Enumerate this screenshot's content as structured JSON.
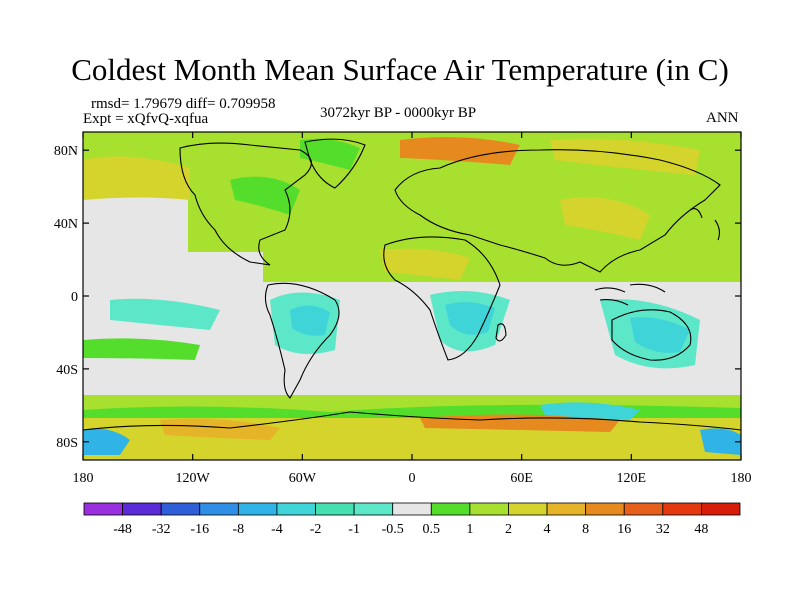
{
  "title": "Coldest Month Mean Surface Air Temperature (in C)",
  "stats": "rmsd= 1.79679  diff= 0.709958",
  "expt": "Expt = xQfvQ-xqfua",
  "period": "3072kyr BP - 0000kyr BP",
  "season": "ANN",
  "map": {
    "lat_ticks": [
      "80N",
      "40N",
      "0",
      "40S",
      "80S"
    ],
    "lon_ticks": [
      "180",
      "120W",
      "60W",
      "0",
      "60E",
      "120E",
      "180"
    ]
  },
  "legend": {
    "labels": [
      "-48",
      "-32",
      "-16",
      "-8",
      "-4",
      "-2",
      "-1",
      "-0.5",
      "0.5",
      "1",
      "2",
      "4",
      "8",
      "16",
      "32",
      "48"
    ],
    "colors": [
      "#9a2fe0",
      "#5a2bd6",
      "#2f5fd8",
      "#2f8fe6",
      "#30b4e8",
      "#3fd4d8",
      "#44e0b0",
      "#5ce8c8",
      "#e6e6e6",
      "#55dd2c",
      "#a8e030",
      "#d4d42c",
      "#e6b428",
      "#e68a20",
      "#e6601c",
      "#e4380e",
      "#d81c0a"
    ]
  },
  "colors": {
    "land_outline": "#000000",
    "near_zero": "#e6e6e6"
  }
}
